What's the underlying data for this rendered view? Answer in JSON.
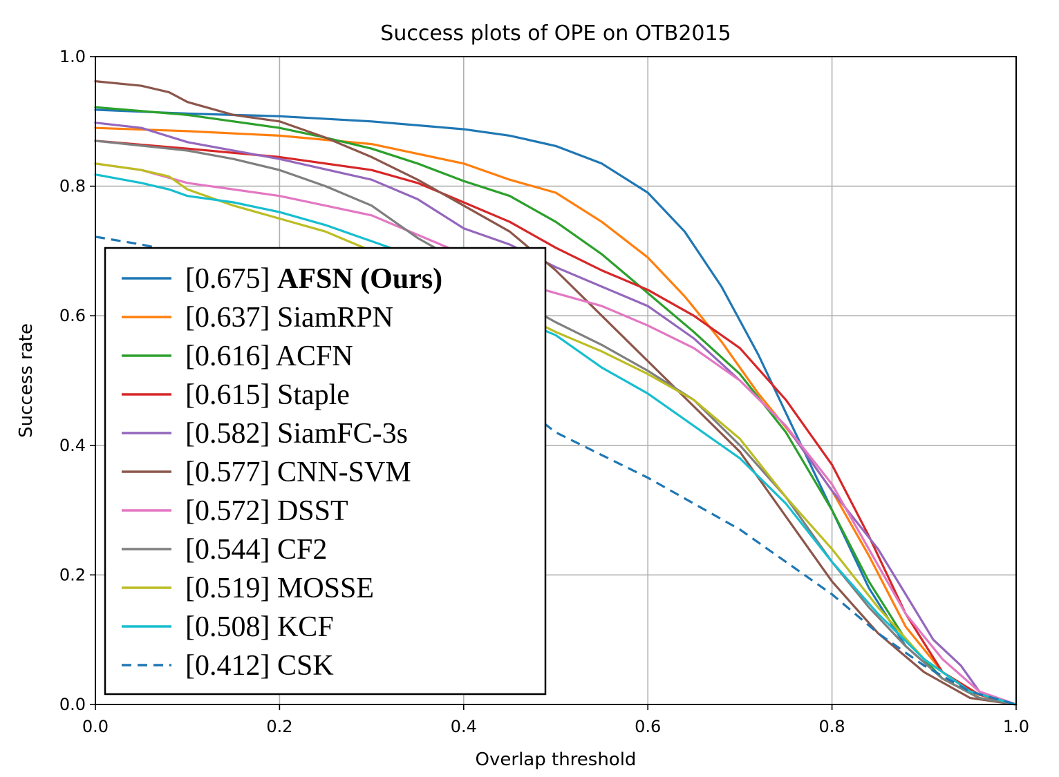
{
  "chart_data": {
    "type": "line",
    "title": "Success plots of OPE on OTB2015",
    "xlabel": "Overlap threshold",
    "ylabel": "Success rate",
    "xlim": [
      0,
      1
    ],
    "ylim": [
      0,
      1
    ],
    "xticks": [
      "0.0",
      "0.2",
      "0.4",
      "0.6",
      "0.8",
      "1.0"
    ],
    "yticks": [
      "0.0",
      "0.2",
      "0.4",
      "0.6",
      "0.8",
      "1.0"
    ],
    "grid": true,
    "legend_position": "left, lower-middle",
    "series": [
      {
        "name": "[0.675] ",
        "name_bold": "AFSN (Ours)",
        "color": "#1f77b4",
        "dash": false,
        "x": [
          0,
          0.1,
          0.2,
          0.3,
          0.4,
          0.45,
          0.5,
          0.55,
          0.6,
          0.64,
          0.68,
          0.72,
          0.76,
          0.8,
          0.84,
          0.88,
          0.92,
          0.96,
          1.0
        ],
        "y": [
          0.918,
          0.912,
          0.908,
          0.9,
          0.888,
          0.878,
          0.862,
          0.835,
          0.79,
          0.73,
          0.645,
          0.54,
          0.42,
          0.3,
          0.18,
          0.09,
          0.04,
          0.01,
          0.0
        ]
      },
      {
        "name": "[0.637] SiamRPN",
        "color": "#ff7f0e",
        "dash": false,
        "x": [
          0,
          0.1,
          0.2,
          0.3,
          0.35,
          0.4,
          0.45,
          0.5,
          0.55,
          0.6,
          0.64,
          0.68,
          0.72,
          0.76,
          0.8,
          0.84,
          0.88,
          0.92,
          0.96,
          1.0
        ],
        "y": [
          0.89,
          0.885,
          0.878,
          0.865,
          0.85,
          0.835,
          0.81,
          0.79,
          0.745,
          0.69,
          0.63,
          0.56,
          0.48,
          0.41,
          0.33,
          0.23,
          0.12,
          0.05,
          0.01,
          0.0
        ]
      },
      {
        "name": "[0.616] ACFN",
        "color": "#2ca02c",
        "dash": false,
        "x": [
          0,
          0.1,
          0.2,
          0.25,
          0.3,
          0.35,
          0.4,
          0.45,
          0.5,
          0.55,
          0.6,
          0.65,
          0.7,
          0.75,
          0.8,
          0.84,
          0.88,
          0.92,
          0.96,
          1.0
        ],
        "y": [
          0.922,
          0.91,
          0.89,
          0.875,
          0.858,
          0.835,
          0.808,
          0.785,
          0.745,
          0.695,
          0.635,
          0.575,
          0.51,
          0.42,
          0.3,
          0.19,
          0.1,
          0.04,
          0.01,
          0.0
        ]
      },
      {
        "name": "[0.615] Staple",
        "color": "#d62728",
        "dash": false,
        "x": [
          0,
          0.1,
          0.2,
          0.3,
          0.35,
          0.4,
          0.45,
          0.5,
          0.55,
          0.6,
          0.65,
          0.7,
          0.75,
          0.8,
          0.84,
          0.88,
          0.92,
          0.96,
          1.0
        ],
        "y": [
          0.87,
          0.858,
          0.845,
          0.825,
          0.805,
          0.775,
          0.745,
          0.705,
          0.67,
          0.64,
          0.6,
          0.55,
          0.47,
          0.37,
          0.26,
          0.14,
          0.05,
          0.015,
          0.0
        ]
      },
      {
        "name": "[0.582] SiamFC-3s",
        "color": "#9467bd",
        "dash": false,
        "x": [
          0,
          0.05,
          0.1,
          0.2,
          0.3,
          0.35,
          0.4,
          0.45,
          0.5,
          0.55,
          0.6,
          0.65,
          0.7,
          0.75,
          0.8,
          0.85,
          0.88,
          0.91,
          0.94,
          0.96,
          1.0
        ],
        "y": [
          0.898,
          0.89,
          0.868,
          0.842,
          0.81,
          0.78,
          0.735,
          0.71,
          0.675,
          0.645,
          0.615,
          0.565,
          0.5,
          0.43,
          0.33,
          0.24,
          0.17,
          0.1,
          0.06,
          0.02,
          0.0
        ]
      },
      {
        "name": "[0.577] CNN-SVM",
        "color": "#8c564b",
        "dash": false,
        "x": [
          0,
          0.05,
          0.08,
          0.1,
          0.15,
          0.2,
          0.25,
          0.3,
          0.35,
          0.4,
          0.45,
          0.5,
          0.55,
          0.6,
          0.65,
          0.7,
          0.75,
          0.8,
          0.85,
          0.9,
          0.95,
          1.0
        ],
        "y": [
          0.962,
          0.955,
          0.945,
          0.93,
          0.91,
          0.9,
          0.875,
          0.845,
          0.81,
          0.77,
          0.73,
          0.67,
          0.6,
          0.53,
          0.46,
          0.39,
          0.29,
          0.19,
          0.11,
          0.05,
          0.01,
          0.0
        ]
      },
      {
        "name": "[0.572] DSST",
        "color": "#e377c2",
        "dash": false,
        "x": [
          0,
          0.05,
          0.1,
          0.2,
          0.3,
          0.35,
          0.4,
          0.45,
          0.5,
          0.55,
          0.6,
          0.65,
          0.7,
          0.75,
          0.8,
          0.84,
          0.88,
          0.92,
          0.96,
          1.0
        ],
        "y": [
          0.835,
          0.825,
          0.805,
          0.785,
          0.755,
          0.725,
          0.695,
          0.655,
          0.635,
          0.615,
          0.585,
          0.55,
          0.5,
          0.43,
          0.34,
          0.24,
          0.14,
          0.07,
          0.02,
          0.0
        ]
      },
      {
        "name": "[0.544] CF2",
        "color": "#7f7f7f",
        "dash": false,
        "x": [
          0,
          0.1,
          0.15,
          0.2,
          0.25,
          0.3,
          0.35,
          0.4,
          0.45,
          0.5,
          0.55,
          0.6,
          0.65,
          0.7,
          0.75,
          0.8,
          0.84,
          0.88,
          0.92,
          0.96,
          1.0
        ],
        "y": [
          0.87,
          0.855,
          0.842,
          0.825,
          0.8,
          0.77,
          0.72,
          0.68,
          0.63,
          0.59,
          0.555,
          0.515,
          0.47,
          0.4,
          0.32,
          0.22,
          0.15,
          0.09,
          0.04,
          0.01,
          0.0
        ]
      },
      {
        "name": "[0.519] MOSSE",
        "color": "#bcbd22",
        "dash": false,
        "x": [
          0,
          0.05,
          0.08,
          0.1,
          0.15,
          0.2,
          0.25,
          0.3,
          0.35,
          0.4,
          0.45,
          0.5,
          0.55,
          0.6,
          0.65,
          0.7,
          0.75,
          0.8,
          0.85,
          0.9,
          0.95,
          1.0
        ],
        "y": [
          0.835,
          0.825,
          0.815,
          0.795,
          0.77,
          0.75,
          0.73,
          0.7,
          0.675,
          0.64,
          0.61,
          0.575,
          0.545,
          0.51,
          0.47,
          0.41,
          0.32,
          0.24,
          0.15,
          0.07,
          0.02,
          0.0
        ]
      },
      {
        "name": "[0.508] KCF",
        "color": "#17becf",
        "dash": false,
        "x": [
          0,
          0.05,
          0.08,
          0.1,
          0.15,
          0.2,
          0.25,
          0.3,
          0.35,
          0.4,
          0.45,
          0.5,
          0.55,
          0.6,
          0.65,
          0.7,
          0.75,
          0.8,
          0.85,
          0.9,
          0.95,
          1.0
        ],
        "y": [
          0.818,
          0.805,
          0.795,
          0.785,
          0.775,
          0.76,
          0.74,
          0.715,
          0.69,
          0.655,
          0.6,
          0.57,
          0.52,
          0.48,
          0.43,
          0.38,
          0.31,
          0.22,
          0.14,
          0.07,
          0.02,
          0.0
        ]
      },
      {
        "name": "[0.412] CSK",
        "color": "#1f77b4",
        "dash": true,
        "x": [
          0,
          0.05,
          0.1,
          0.2,
          0.3,
          0.4,
          0.5,
          0.55,
          0.6,
          0.65,
          0.7,
          0.75,
          0.8,
          0.85,
          0.9,
          0.95,
          1.0
        ],
        "y": [
          0.722,
          0.71,
          0.695,
          0.66,
          0.6,
          0.53,
          0.42,
          0.385,
          0.35,
          0.31,
          0.27,
          0.22,
          0.17,
          0.11,
          0.06,
          0.02,
          0.0
        ]
      }
    ]
  }
}
